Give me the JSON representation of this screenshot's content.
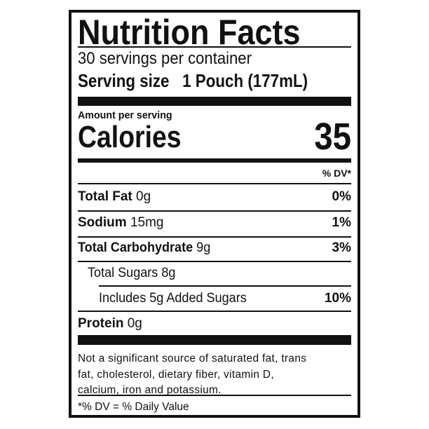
{
  "title": "Nutrition Facts",
  "servings_per_container": "30 servings per container",
  "serving_size": {
    "label": "Serving size",
    "value": "1 Pouch (177mL)"
  },
  "amount_per_serving": "Amount per serving",
  "calories": {
    "label": "Calories",
    "value": "35"
  },
  "dv_header": "% DV*",
  "nutrients": [
    {
      "name": "Total Fat",
      "amount": "0g",
      "dv": "0%"
    },
    {
      "name": "Sodium",
      "amount": "15mg",
      "dv": "1%"
    },
    {
      "name": "Total Carbohydrate",
      "amount": "9g",
      "dv": "3%"
    },
    {
      "name": "Total Sugars 8g",
      "amount": "",
      "dv": ""
    },
    {
      "name": "Includes 5g Added Sugars",
      "amount": "",
      "dv": "10%"
    },
    {
      "name": "Protein",
      "amount": "0g",
      "dv": ""
    }
  ],
  "not_significant": [
    "Not a significant source of saturated fat, trans",
    "fat, cholesterol, dietary fiber, vitamin D,",
    "calcium, iron and potassium."
  ],
  "footnote": "*% DV = % Daily Value"
}
